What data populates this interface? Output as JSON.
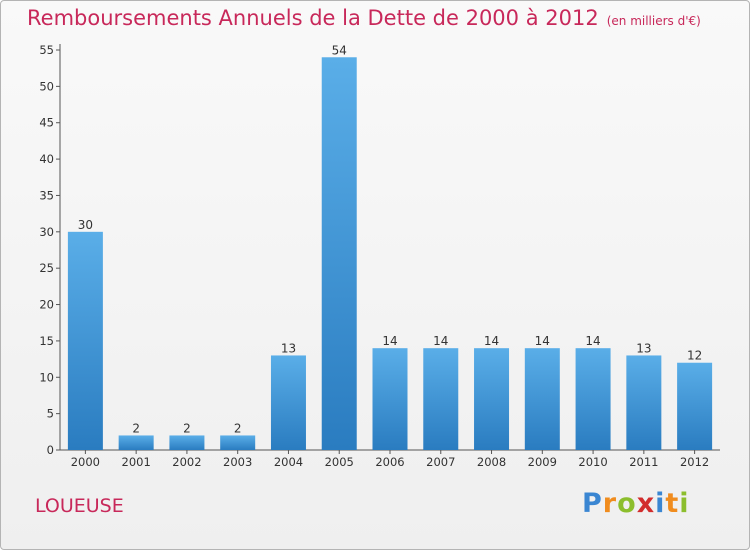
{
  "header": {
    "title": "Remboursements Annuels de la Dette de 2000 à 2012",
    "unit": "(en milliers d'€)"
  },
  "footer": {
    "commune": "LOUEUSE",
    "logo": {
      "p": "P",
      "r": "r",
      "o": "o",
      "x": "x",
      "i": "i",
      "t": "t",
      "i2": "i"
    }
  },
  "colors": {
    "title": "#c8285a",
    "bar_top": "#5aaee8",
    "bar_bottom": "#2a7cc0"
  },
  "chart_data": {
    "type": "bar",
    "title": "Remboursements Annuels de la Dette de 2000 à 2012",
    "categories": [
      "2000",
      "2001",
      "2002",
      "2003",
      "2004",
      "2005",
      "2006",
      "2007",
      "2008",
      "2009",
      "2010",
      "2011",
      "2012"
    ],
    "values": [
      30,
      2,
      2,
      2,
      13,
      54,
      14,
      14,
      14,
      14,
      14,
      13,
      12
    ],
    "ylim": [
      0,
      55
    ],
    "yticks": [
      0,
      5,
      10,
      15,
      20,
      25,
      30,
      35,
      40,
      45,
      50,
      55
    ],
    "grid": false,
    "xlabel": "",
    "ylabel": ""
  }
}
